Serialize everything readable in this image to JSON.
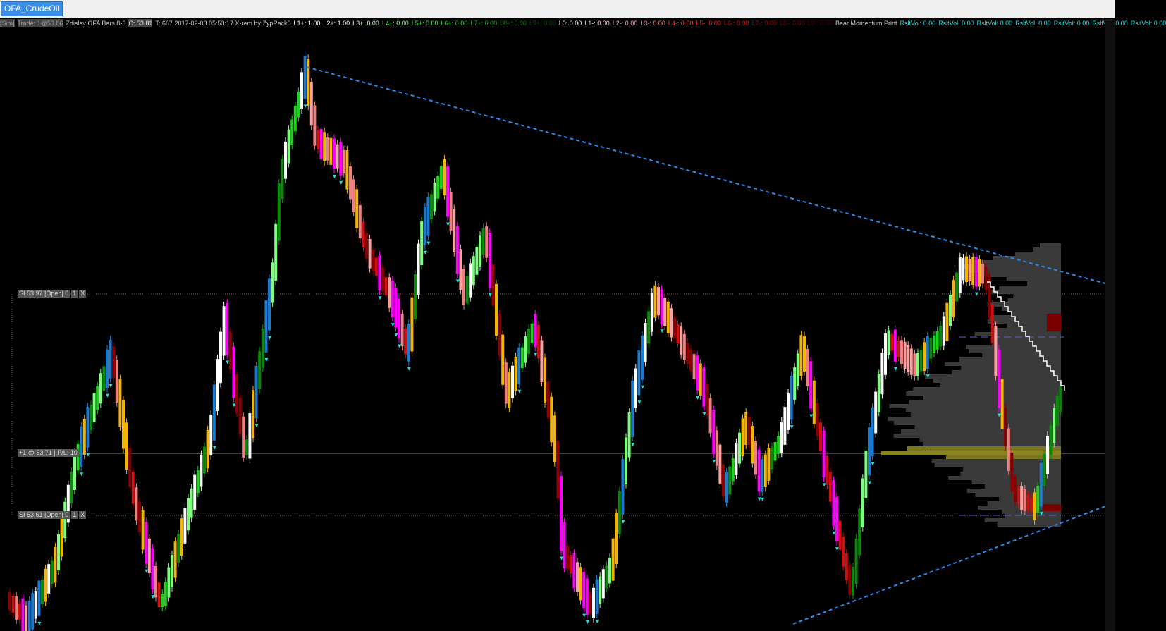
{
  "tab": {
    "title": "OFA_CrudeOil"
  },
  "header": {
    "items": [
      {
        "text": "[Sim]",
        "color": "#9a9a9a",
        "boxed": true
      },
      {
        "text": "Trade: 1@53.86",
        "color": "#9a9a9a",
        "boxed": true
      },
      {
        "text": "Zdislav OFA Bars 8-3",
        "color": "#c8c8c8"
      },
      {
        "text": "C: 53.81",
        "color": "#e0e0e0",
        "boxed": true
      },
      {
        "text": "T: 667 2017-02-03 05:53:17 X-rem by ZypPack0",
        "color": "#c8c8c8"
      },
      {
        "text": "L1+: 1.00",
        "color": "#ffffff"
      },
      {
        "text": "L2+: 1.00",
        "color": "#ffffff"
      },
      {
        "text": "L3+: 0.00",
        "color": "#d8ffd8"
      },
      {
        "text": "L4+: 0.00",
        "color": "#80ff80"
      },
      {
        "text": "L5+: 0.00",
        "color": "#40ff40"
      },
      {
        "text": "L6+: 0.00",
        "color": "#20e020"
      },
      {
        "text": "L7+: 0.00",
        "color": "#10b010"
      },
      {
        "text": "L8+: 0.00",
        "color": "#108010"
      },
      {
        "text": "L9+: 0.00",
        "color": "#0a500a"
      },
      {
        "text": "L0: 0.00",
        "color": "#ffffff"
      },
      {
        "text": "L1-: 0.00",
        "color": "#ffd0d0"
      },
      {
        "text": "L2-: 0.00",
        "color": "#ffb0b0"
      },
      {
        "text": "L3-: 0.00",
        "color": "#ff8080"
      },
      {
        "text": "L4-: 0.00",
        "color": "#ff4040"
      },
      {
        "text": "L5-: 0.00",
        "color": "#ff2020"
      },
      {
        "text": "L6-: 0.00",
        "color": "#e01010"
      },
      {
        "text": "L7-: 0.00",
        "color": "#b00000"
      },
      {
        "text": "L8-: 0.00",
        "color": "#800000"
      },
      {
        "text": "L9-: 0.00",
        "color": "#500000"
      },
      {
        "text": "Bear Momentum Print",
        "color": "#c8c8c8"
      },
      {
        "text": "RsltVol: 0.00",
        "color": "#20e0e0"
      },
      {
        "text": "RsltVol: 0.00",
        "color": "#20e0e0"
      },
      {
        "text": "RsltVol: 0.00",
        "color": "#20e0e0"
      },
      {
        "text": "RsltVol: 0.00",
        "color": "#20e0e0"
      },
      {
        "text": "RsltVol: 0.00",
        "color": "#20e0e0"
      },
      {
        "text": "RsltVol: 0.00",
        "color": "#20e0e0"
      },
      {
        "text": "RsltVol: 0.00",
        "color": "#20e0e0"
      }
    ]
  },
  "orders": [
    {
      "label": "SI 53.97 |Open| 0",
      "qty": "1",
      "close": "X"
    },
    {
      "label": "+1 @ 53.71 | P/L: 10"
    },
    {
      "label": "SI 53.61 |Open| 0",
      "qty": "1",
      "close": "X"
    }
  ]
}
